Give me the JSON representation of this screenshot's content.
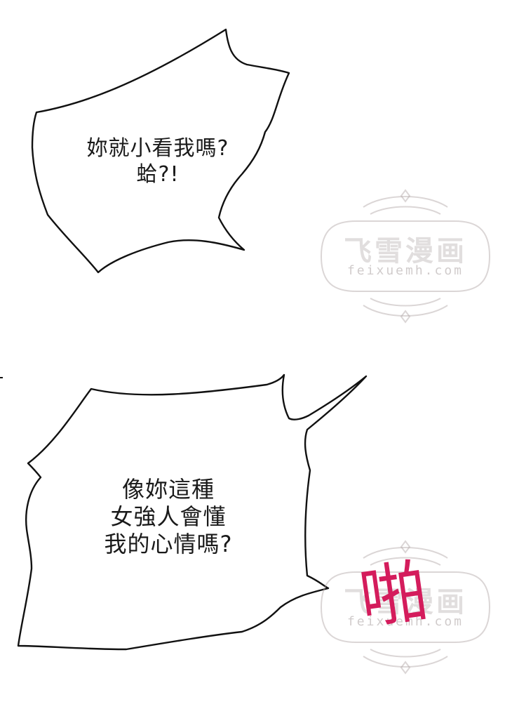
{
  "panels": [
    {
      "bubble": {
        "lines": [
          "妳就小看我嗎?",
          "蛤?!"
        ]
      }
    },
    {
      "bubble": {
        "lines": [
          "像妳這種",
          "女強人會懂",
          "我的心情嗎?"
        ]
      },
      "sfx": "啪"
    }
  ],
  "watermark": {
    "title": "飞雪漫画",
    "url": "feixuemh.com",
    "color": "#b0a4a4"
  },
  "colors": {
    "ink": "#1a1a1a",
    "sfx": "#d41c5c",
    "background": "#ffffff"
  }
}
